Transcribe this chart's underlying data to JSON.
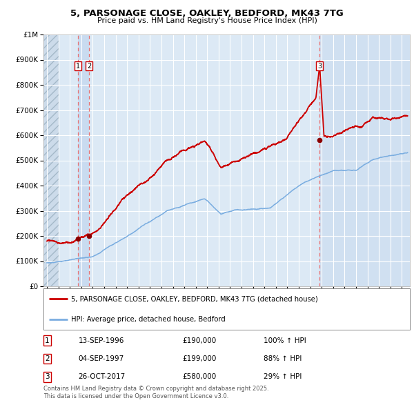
{
  "title_line1": "5, PARSONAGE CLOSE, OAKLEY, BEDFORD, MK43 7TG",
  "title_line2": "Price paid vs. HM Land Registry's House Price Index (HPI)",
  "background_color": "#dce9f5",
  "plot_bg_color": "#dce9f5",
  "grid_color": "#ffffff",
  "hpi_line_color": "#7aade0",
  "price_line_color": "#cc0000",
  "sale_marker_color": "#8b0000",
  "dashed_line_color": "#e87070",
  "shade_color": "#c5d8ef",
  "hatch_color": "#aabfcf",
  "transactions": [
    {
      "date_num": 1996.71,
      "price": 190000,
      "label": "1"
    },
    {
      "date_num": 1997.67,
      "price": 199000,
      "label": "2"
    },
    {
      "date_num": 2017.82,
      "price": 580000,
      "label": "3"
    }
  ],
  "legend_entries": [
    {
      "label": "5, PARSONAGE CLOSE, OAKLEY, BEDFORD, MK43 7TG (detached house)",
      "color": "#cc0000"
    },
    {
      "label": "HPI: Average price, detached house, Bedford",
      "color": "#7aade0"
    }
  ],
  "table_rows": [
    {
      "num": "1",
      "date": "13-SEP-1996",
      "price": "£190,000",
      "info": "100% ↑ HPI"
    },
    {
      "num": "2",
      "date": "04-SEP-1997",
      "price": "£199,000",
      "info": "88% ↑ HPI"
    },
    {
      "num": "3",
      "date": "26-OCT-2017",
      "price": "£580,000",
      "info": "29% ↑ HPI"
    }
  ],
  "footer": "Contains HM Land Registry data © Crown copyright and database right 2025.\nThis data is licensed under the Open Government Licence v3.0.",
  "xmin": 1993.7,
  "xmax": 2025.7,
  "ymin": 0,
  "ymax": 1000000,
  "yticks": [
    0,
    100000,
    200000,
    300000,
    400000,
    500000,
    600000,
    700000,
    800000,
    900000,
    1000000
  ],
  "ytick_labels": [
    "£0",
    "£100K",
    "£200K",
    "£300K",
    "£400K",
    "£500K",
    "£600K",
    "£700K",
    "£800K",
    "£900K",
    "£1M"
  ]
}
